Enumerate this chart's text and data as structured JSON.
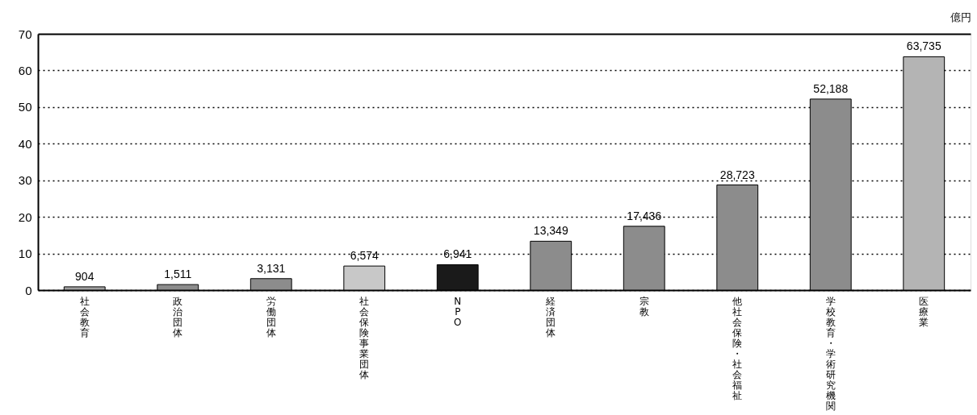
{
  "chart_data": {
    "type": "bar",
    "ylabel": "億円",
    "categories": [
      "社会教育",
      "政治団体",
      "労働団体",
      "社会保険事業団体",
      "NPO",
      "経済団体",
      "宗教",
      "他社会保険・社会福祉",
      "学校教育・学術研究機関",
      "医療業"
    ],
    "values": [
      0.904,
      1.511,
      3.131,
      6.574,
      6.941,
      13.349,
      17.436,
      28.723,
      52.188,
      63.735
    ],
    "colors": [
      "#a0a0a0",
      "#8c8c8c",
      "#8c8c8c",
      "#c8c8c8",
      "#1a1a1a",
      "#8c8c8c",
      "#8c8c8c",
      "#8c8c8c",
      "#8c8c8c",
      "#b4b4b4"
    ],
    "ylim": [
      0,
      70
    ],
    "yticks": [
      0,
      10,
      20,
      30,
      40,
      50,
      60,
      70
    ],
    "grid": "y",
    "annotations": [
      {
        "text": "904",
        "x": "社会教育",
        "y": 0.904
      },
      {
        "text": "1,511",
        "x": "政治団体",
        "y": 1.511
      },
      {
        "text": "3,131",
        "x": "労働団体",
        "y": 3.131
      },
      {
        "text": "6,574",
        "x": "社会保険事業団体",
        "y": 6.574
      },
      {
        "text": "6,941",
        "x": "NPO",
        "y": 6.941
      },
      {
        "text": "13,349",
        "x": "経済団体",
        "y": 13.349
      },
      {
        "text": "17,436",
        "x": "宗教",
        "y": 17.436
      },
      {
        "text": "28,723",
        "x": "他社会保険・社会福祉",
        "y": 28.723
      },
      {
        "text": "52,188",
        "x": "学校教育・学術研究機関",
        "y": 52.188
      },
      {
        "text": "63,735",
        "x": "医療業",
        "y": 63.735
      }
    ]
  }
}
